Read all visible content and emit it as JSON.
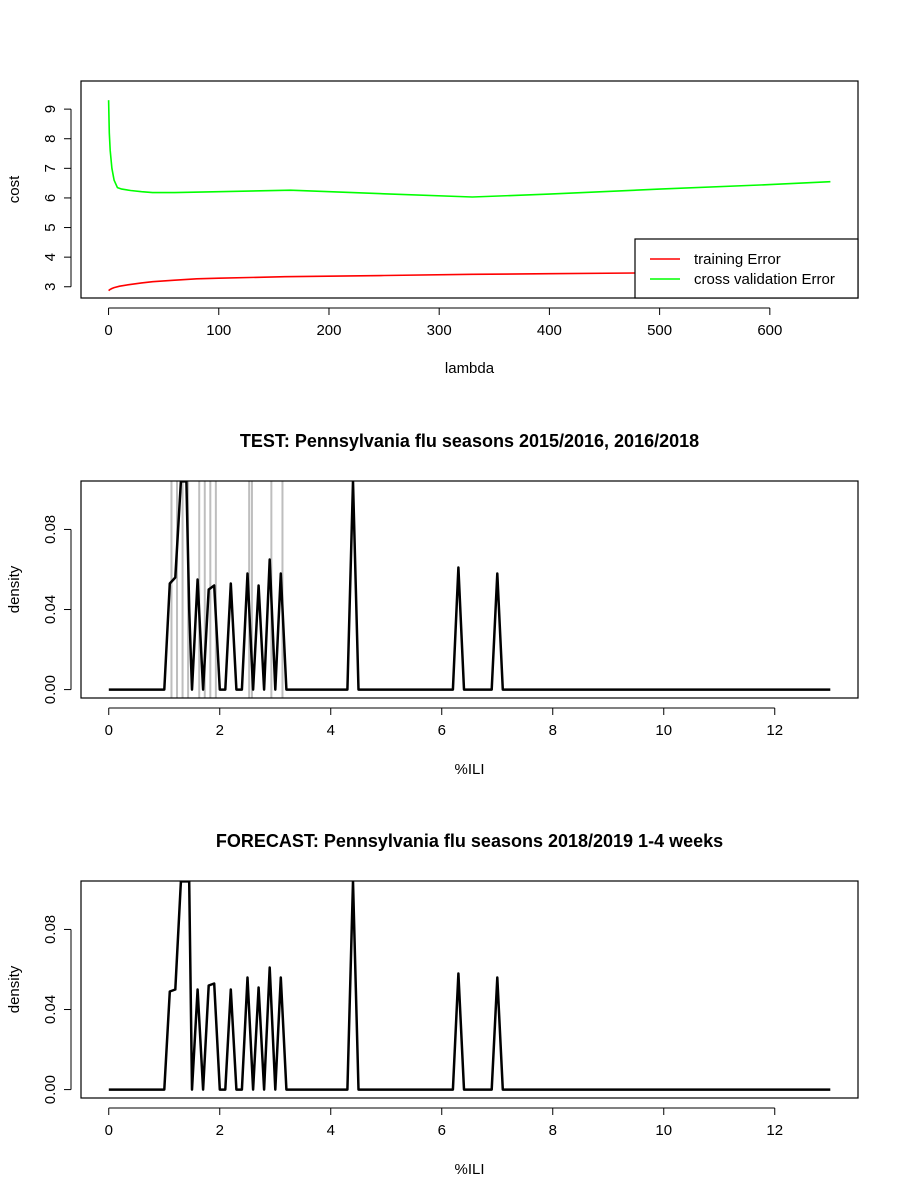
{
  "chart_data": [
    {
      "type": "line",
      "title": "",
      "xlabel": "lambda",
      "ylabel": "cost",
      "xlim": [
        -25,
        680
      ],
      "ylim": [
        2.62,
        9.95
      ],
      "x_ticks": [
        0,
        100,
        200,
        300,
        400,
        500,
        600
      ],
      "y_ticks": [
        3,
        4,
        5,
        6,
        7,
        8,
        9
      ],
      "legend_position": "bottom-right",
      "grid": false,
      "series": [
        {
          "name": "training Error",
          "color": "#ff0000",
          "x": [
            0,
            1,
            3,
            5,
            10,
            20,
            30,
            40,
            60,
            80,
            100,
            160,
            250,
            330,
            400,
            500,
            600,
            655
          ],
          "y": [
            2.87,
            2.9,
            2.94,
            2.97,
            3.02,
            3.08,
            3.13,
            3.17,
            3.22,
            3.27,
            3.29,
            3.34,
            3.38,
            3.42,
            3.44,
            3.47,
            3.5,
            3.52
          ]
        },
        {
          "name": "cross validation Error",
          "color": "#00ff00",
          "x": [
            0,
            0.7,
            1.5,
            3,
            5,
            8,
            12,
            20,
            30,
            40,
            60,
            100,
            165,
            250,
            330,
            400,
            500,
            600,
            655
          ],
          "y": [
            9.3,
            8.2,
            7.6,
            7.0,
            6.6,
            6.35,
            6.3,
            6.25,
            6.21,
            6.18,
            6.18,
            6.21,
            6.26,
            6.14,
            6.03,
            6.13,
            6.3,
            6.45,
            6.55
          ]
        }
      ]
    },
    {
      "type": "line",
      "title": "TEST: Pennsylvania  flu seasons 2015/2016, 2016/2018",
      "xlabel": "%ILI",
      "ylabel": "density",
      "xlim": [
        -0.5,
        13.5
      ],
      "ylim": [
        -0.0042,
        0.1042
      ],
      "x_ticks": [
        0,
        2,
        4,
        6,
        8,
        10,
        12
      ],
      "y_ticks": [
        0.0,
        0.04,
        0.08
      ],
      "y_tick_labels": [
        "0.00",
        "0.04",
        "0.08"
      ],
      "grid": false,
      "vertical_lines": {
        "color": "#bebebe",
        "x": [
          1.13,
          1.23,
          1.33,
          1.43,
          1.63,
          1.73,
          1.83,
          1.93,
          2.53,
          2.58,
          2.93,
          3.13
        ]
      },
      "series": [
        {
          "color": "#000000",
          "x": [
            0,
            1.0,
            1.1,
            1.2,
            1.25,
            1.3,
            1.35,
            1.4,
            1.45,
            1.5,
            1.6,
            1.7,
            1.8,
            1.9,
            2.0,
            2.1,
            2.2,
            2.3,
            2.4,
            2.5,
            2.6,
            2.7,
            2.8,
            2.9,
            3.0,
            3.1,
            3.2,
            4.3,
            4.4,
            4.5,
            6.2,
            6.3,
            6.4,
            6.9,
            7.0,
            7.1,
            13
          ],
          "y": [
            0,
            0,
            0.053,
            0.056,
            0.08,
            0.104,
            0.104,
            0.104,
            0.04,
            0.0,
            0.055,
            0.0,
            0.05,
            0.052,
            0.0,
            0.0,
            0.053,
            0.0,
            0.0,
            0.058,
            0.0,
            0.052,
            0.0,
            0.065,
            0.0,
            0.058,
            0.0,
            0.0,
            0.104,
            0.0,
            0.0,
            0.061,
            0.0,
            0.0,
            0.058,
            0.0,
            0
          ]
        }
      ]
    },
    {
      "type": "line",
      "title": "FORECAST: Pennsylvania flu seasons 2018/2019 1-4 weeks",
      "xlabel": "%ILI",
      "ylabel": "density",
      "xlim": [
        -0.5,
        13.5
      ],
      "ylim": [
        -0.0042,
        0.1042
      ],
      "x_ticks": [
        0,
        2,
        4,
        6,
        8,
        10,
        12
      ],
      "y_ticks": [
        0.0,
        0.04,
        0.08
      ],
      "y_tick_labels": [
        "0.00",
        "0.04",
        "0.08"
      ],
      "grid": false,
      "series": [
        {
          "color": "#000000",
          "x": [
            0,
            1.0,
            1.1,
            1.2,
            1.3,
            1.35,
            1.45,
            1.5,
            1.6,
            1.7,
            1.8,
            1.9,
            2.0,
            2.1,
            2.2,
            2.3,
            2.4,
            2.5,
            2.6,
            2.7,
            2.8,
            2.9,
            3.0,
            3.1,
            3.2,
            4.3,
            4.4,
            4.5,
            6.2,
            6.3,
            6.4,
            6.9,
            7.0,
            7.1,
            13
          ],
          "y": [
            0,
            0,
            0.049,
            0.05,
            0.104,
            0.104,
            0.104,
            0.0,
            0.05,
            0.0,
            0.052,
            0.053,
            0.0,
            0.0,
            0.05,
            0.0,
            0.0,
            0.056,
            0.0,
            0.051,
            0.0,
            0.061,
            0.0,
            0.056,
            0.0,
            0.0,
            0.104,
            0.0,
            0.0,
            0.058,
            0.0,
            0.0,
            0.056,
            0.0,
            0
          ]
        }
      ]
    }
  ]
}
